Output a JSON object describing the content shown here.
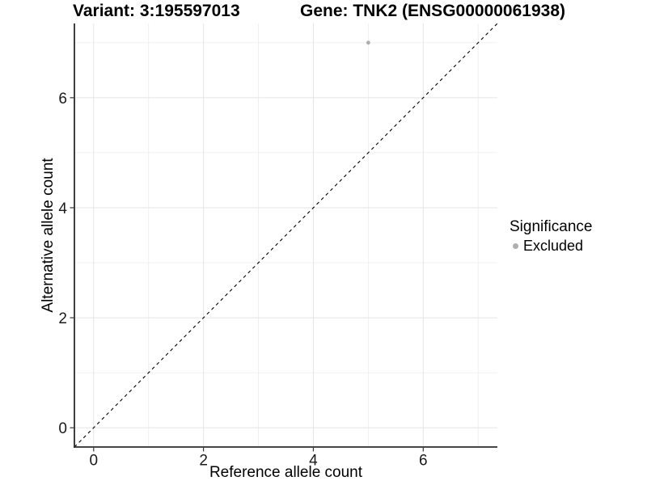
{
  "chart_data": {
    "type": "scatter",
    "title_left": "Variant: 3:195597013",
    "title_right": "Gene: TNK2 (ENSG00000061938)",
    "xlabel": "Reference allele count",
    "ylabel": "Alternative allele count",
    "x_ticks": [
      0,
      2,
      4,
      6
    ],
    "y_ticks": [
      0,
      2,
      4,
      6
    ],
    "x_minor_ticks": [
      1,
      3,
      5,
      7
    ],
    "y_minor_ticks": [
      1,
      3,
      5,
      7
    ],
    "xlim": [
      -0.35,
      7.35
    ],
    "ylim": [
      -0.35,
      7.35
    ],
    "grid": true,
    "points": [
      {
        "x": 5,
        "y": 7,
        "series": "Excluded"
      }
    ],
    "reference_line": {
      "type": "abline",
      "slope": 1,
      "intercept": 0,
      "style": "dashed",
      "color": "#000000"
    },
    "legend": {
      "title": "Significance",
      "position": "right",
      "items": [
        {
          "label": "Excluded",
          "color": "#AEAEAE",
          "marker": "circle"
        }
      ]
    },
    "colors": {
      "point": "#AEAEAE",
      "grid_major": "#E5E5E5",
      "grid_minor": "#F0F0F0",
      "axis_line": "#2B2B2B",
      "tick_mark": "#333333",
      "tick_label": "#1A1A1A",
      "background": "#FFFFFF"
    }
  }
}
